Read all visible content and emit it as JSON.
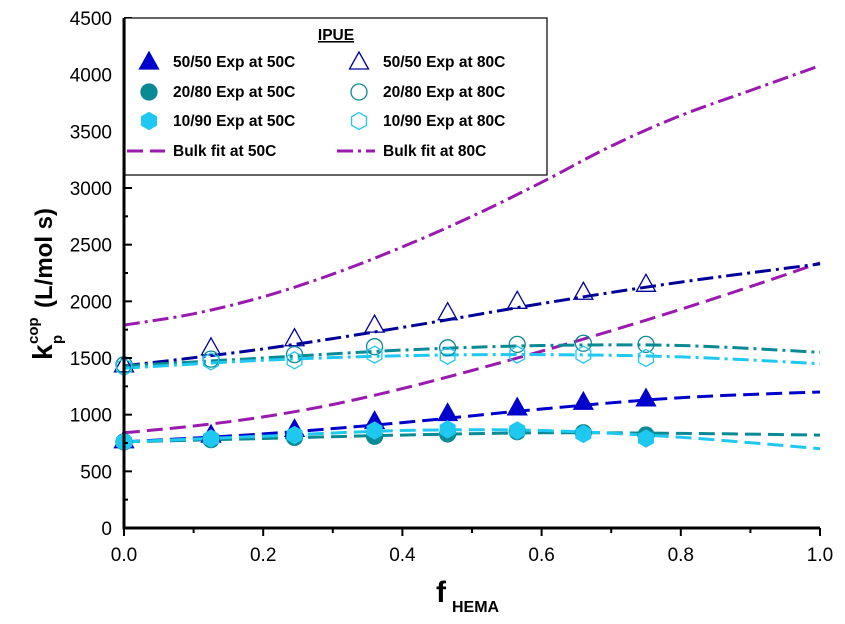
{
  "chart_data": {
    "type": "scatter",
    "xlabel": {
      "main": "f",
      "sub": "HEMA"
    },
    "ylabel": {
      "main": "k",
      "sub": "p",
      "sup": "cop",
      "unit": "(L/mol s)"
    },
    "xlim": [
      0,
      1
    ],
    "ylim": [
      0,
      4500
    ],
    "xticks": [
      0.0,
      0.2,
      0.4,
      0.6,
      0.8,
      1.0
    ],
    "xtick_labels": [
      "0.0",
      "0.2",
      "0.4",
      "0.6",
      "0.8",
      "1.0"
    ],
    "yticks": [
      0,
      500,
      1000,
      1500,
      2000,
      2500,
      3000,
      3500,
      4000,
      4500
    ],
    "ytick_labels": [
      "0",
      "500",
      "1000",
      "1500",
      "2000",
      "2500",
      "3000",
      "3500",
      "4000",
      "4500"
    ],
    "grid": false,
    "legend": {
      "title": "IPUE",
      "placement": "top-center",
      "entries": [
        {
          "label": "50/50 Exp at 50C",
          "marker": "triangle-filled",
          "color": "#0000cc"
        },
        {
          "label": "50/50 Exp at 80C",
          "marker": "triangle-open",
          "color": "#000099"
        },
        {
          "label": "20/80 Exp at 50C",
          "marker": "circle-filled",
          "color": "#0a8a94"
        },
        {
          "label": "20/80 Exp at 80C",
          "marker": "circle-open",
          "color": "#0a8a94"
        },
        {
          "label": "10/90 Exp at 50C",
          "marker": "hexagon-filled",
          "color": "#1fc8f0"
        },
        {
          "label": "10/90 Exp at 80C",
          "marker": "hexagon-open",
          "color": "#1fc8f0"
        },
        {
          "label": "Bulk fit at 50C",
          "marker": "dash",
          "color": "#9a1ab0"
        },
        {
          "label": "Bulk fit at 80C",
          "marker": "dashdot",
          "color": "#9a1ab0"
        }
      ]
    },
    "series": [
      {
        "name": "50/50 Exp at 50C",
        "kind": "points",
        "marker": "triangle-filled",
        "color": "#0000cc",
        "x": [
          0.0,
          0.125,
          0.245,
          0.36,
          0.465,
          0.565,
          0.66,
          0.75
        ],
        "y": [
          770,
          820,
          870,
          940,
          1010,
          1060,
          1110,
          1140
        ]
      },
      {
        "name": "50/50 Exp at 80C",
        "kind": "points",
        "marker": "triangle-open",
        "color": "#000099",
        "x": [
          0.0,
          0.125,
          0.245,
          0.36,
          0.465,
          0.565,
          0.66,
          0.75
        ],
        "y": [
          1440,
          1590,
          1670,
          1790,
          1900,
          2000,
          2080,
          2150
        ]
      },
      {
        "name": "20/80 Exp at 50C",
        "kind": "points",
        "marker": "circle-filled",
        "color": "#0a8a94",
        "x": [
          0.0,
          0.125,
          0.245,
          0.36,
          0.465,
          0.565,
          0.66,
          0.75
        ],
        "y": [
          760,
          780,
          800,
          810,
          830,
          850,
          840,
          820
        ]
      },
      {
        "name": "20/80 Exp at 80C",
        "kind": "points",
        "marker": "circle-open",
        "color": "#0a8a94",
        "x": [
          0.0,
          0.125,
          0.245,
          0.36,
          0.465,
          0.565,
          0.66,
          0.75
        ],
        "y": [
          1440,
          1490,
          1530,
          1600,
          1590,
          1620,
          1630,
          1620
        ]
      },
      {
        "name": "10/90 Exp at 50C",
        "kind": "points",
        "marker": "hexagon-filled",
        "color": "#1fc8f0",
        "x": [
          0.0,
          0.125,
          0.245,
          0.36,
          0.465,
          0.565,
          0.66,
          0.75
        ],
        "y": [
          760,
          790,
          820,
          860,
          870,
          860,
          830,
          790
        ]
      },
      {
        "name": "10/90 Exp at 80C",
        "kind": "points",
        "marker": "hexagon-open",
        "color": "#1fc8f0",
        "x": [
          0.0,
          0.125,
          0.245,
          0.36,
          0.465,
          0.565,
          0.66,
          0.75
        ],
        "y": [
          1420,
          1470,
          1480,
          1530,
          1520,
          1530,
          1530,
          1500
        ]
      },
      {
        "name": "Bulk fit at 50C",
        "kind": "line",
        "dash": "dash",
        "color": "#9a1ab0",
        "x": [
          0.0,
          0.1,
          0.2,
          0.3,
          0.4,
          0.5,
          0.6,
          0.7,
          0.8,
          0.9,
          1.0
        ],
        "y": [
          840,
          900,
          980,
          1090,
          1230,
          1390,
          1560,
          1740,
          1930,
          2130,
          2340
        ]
      },
      {
        "name": "Bulk fit at 80C",
        "kind": "line",
        "dash": "dashdot",
        "color": "#9a1ab0",
        "x": [
          0.0,
          0.1,
          0.2,
          0.3,
          0.4,
          0.5,
          0.6,
          0.7,
          0.8,
          0.9,
          1.0
        ],
        "y": [
          1790,
          1890,
          2040,
          2240,
          2480,
          2750,
          3050,
          3370,
          3640,
          3860,
          4080
        ]
      },
      {
        "name": "",
        "kind": "line",
        "dash": "dash",
        "color": "#0000cc",
        "x": [
          0.0,
          0.2,
          0.4,
          0.6,
          0.8,
          1.0
        ],
        "y": [
          760,
          830,
          930,
          1050,
          1150,
          1200
        ]
      },
      {
        "name": "",
        "kind": "line",
        "dash": "dashdot",
        "color": "#000099",
        "x": [
          0.0,
          0.2,
          0.4,
          0.6,
          0.8,
          1.0
        ],
        "y": [
          1430,
          1580,
          1770,
          1980,
          2170,
          2330
        ]
      },
      {
        "name": "",
        "kind": "line",
        "dash": "dash",
        "color": "#0a8a94",
        "x": [
          0.0,
          0.2,
          0.4,
          0.6,
          0.8,
          1.0
        ],
        "y": [
          760,
          790,
          820,
          840,
          835,
          820
        ]
      },
      {
        "name": "",
        "kind": "line",
        "dash": "dashdot",
        "color": "#0a8a94",
        "x": [
          0.0,
          0.2,
          0.4,
          0.6,
          0.8,
          1.0
        ],
        "y": [
          1430,
          1500,
          1570,
          1610,
          1610,
          1550
        ]
      },
      {
        "name": "",
        "kind": "line",
        "dash": "dash",
        "color": "#1fc8f0",
        "x": [
          0.0,
          0.2,
          0.4,
          0.6,
          0.8,
          1.0
        ],
        "y": [
          760,
          810,
          860,
          860,
          800,
          700
        ]
      },
      {
        "name": "",
        "kind": "line",
        "dash": "dashdot",
        "color": "#1fc8f0",
        "x": [
          0.0,
          0.2,
          0.4,
          0.6,
          0.8,
          1.0
        ],
        "y": [
          1410,
          1480,
          1520,
          1530,
          1510,
          1450
        ]
      }
    ]
  }
}
